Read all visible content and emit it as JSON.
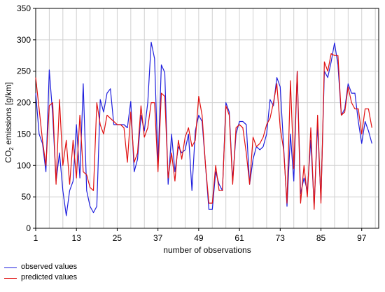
{
  "chart_data": {
    "type": "line",
    "title": "",
    "xlabel": "number of observations",
    "ylabel_main": "CO",
    "ylabel_sub": "2",
    "ylabel_rest": " emissions [g/km]",
    "xlim": [
      1,
      102
    ],
    "ylim": [
      0,
      350
    ],
    "yticks": [
      0,
      50,
      100,
      150,
      200,
      250,
      300,
      350
    ],
    "xticks": [
      1,
      13,
      25,
      37,
      49,
      61,
      73,
      85,
      97
    ],
    "grid": true,
    "legend_position": "bottom-left",
    "x": [
      1,
      2,
      3,
      4,
      5,
      6,
      7,
      8,
      9,
      10,
      11,
      12,
      13,
      14,
      15,
      16,
      17,
      18,
      19,
      20,
      21,
      22,
      23,
      24,
      25,
      26,
      27,
      28,
      29,
      30,
      31,
      32,
      33,
      34,
      35,
      36,
      37,
      38,
      39,
      40,
      41,
      42,
      43,
      44,
      45,
      46,
      47,
      48,
      49,
      50,
      51,
      52,
      53,
      54,
      55,
      56,
      57,
      58,
      59,
      60,
      61,
      62,
      63,
      64,
      65,
      66,
      67,
      68,
      69,
      70,
      71,
      72,
      73,
      74,
      75,
      76,
      77,
      78,
      79,
      80,
      81,
      82,
      83,
      84,
      85,
      86,
      87,
      88,
      89,
      90,
      91,
      92,
      93,
      94,
      95,
      96,
      97,
      98,
      99,
      100
    ],
    "series": [
      {
        "name": "observed values",
        "color": "#1f1fdd",
        "values": [
          215,
          150,
          135,
          90,
          252,
          180,
          75,
          120,
          60,
          20,
          60,
          75,
          165,
          80,
          230,
          60,
          35,
          25,
          35,
          205,
          185,
          215,
          222,
          165,
          165,
          165,
          165,
          160,
          202,
          90,
          110,
          180,
          155,
          200,
          296,
          270,
          100,
          260,
          248,
          70,
          150,
          90,
          130,
          120,
          125,
          150,
          60,
          155,
          180,
          170,
          100,
          30,
          30,
          90,
          70,
          60,
          200,
          185,
          75,
          150,
          170,
          170,
          165,
          70,
          110,
          130,
          125,
          130,
          150,
          205,
          195,
          240,
          225,
          130,
          35,
          150,
          75,
          250,
          55,
          80,
          60,
          140,
          35,
          165,
          45,
          250,
          240,
          265,
          295,
          260,
          180,
          190,
          230,
          215,
          215,
          170,
          135,
          170,
          155,
          135
        ]
      },
      {
        "name": "predicted values",
        "color": "#e01010",
        "values": [
          240,
          190,
          140,
          100,
          195,
          200,
          70,
          205,
          100,
          140,
          70,
          140,
          80,
          180,
          90,
          85,
          65,
          60,
          200,
          165,
          150,
          180,
          175,
          170,
          165,
          165,
          160,
          105,
          185,
          105,
          120,
          195,
          145,
          160,
          200,
          200,
          90,
          215,
          210,
          80,
          120,
          75,
          140,
          110,
          145,
          160,
          130,
          140,
          210,
          180,
          100,
          40,
          40,
          100,
          60,
          60,
          195,
          180,
          70,
          160,
          165,
          160,
          120,
          70,
          145,
          130,
          135,
          145,
          165,
          175,
          200,
          230,
          160,
          125,
          40,
          235,
          95,
          250,
          40,
          100,
          50,
          160,
          30,
          180,
          40,
          265,
          250,
          278,
          275,
          275,
          180,
          185,
          225,
          200,
          190,
          190,
          150,
          190,
          190,
          160
        ]
      }
    ]
  }
}
